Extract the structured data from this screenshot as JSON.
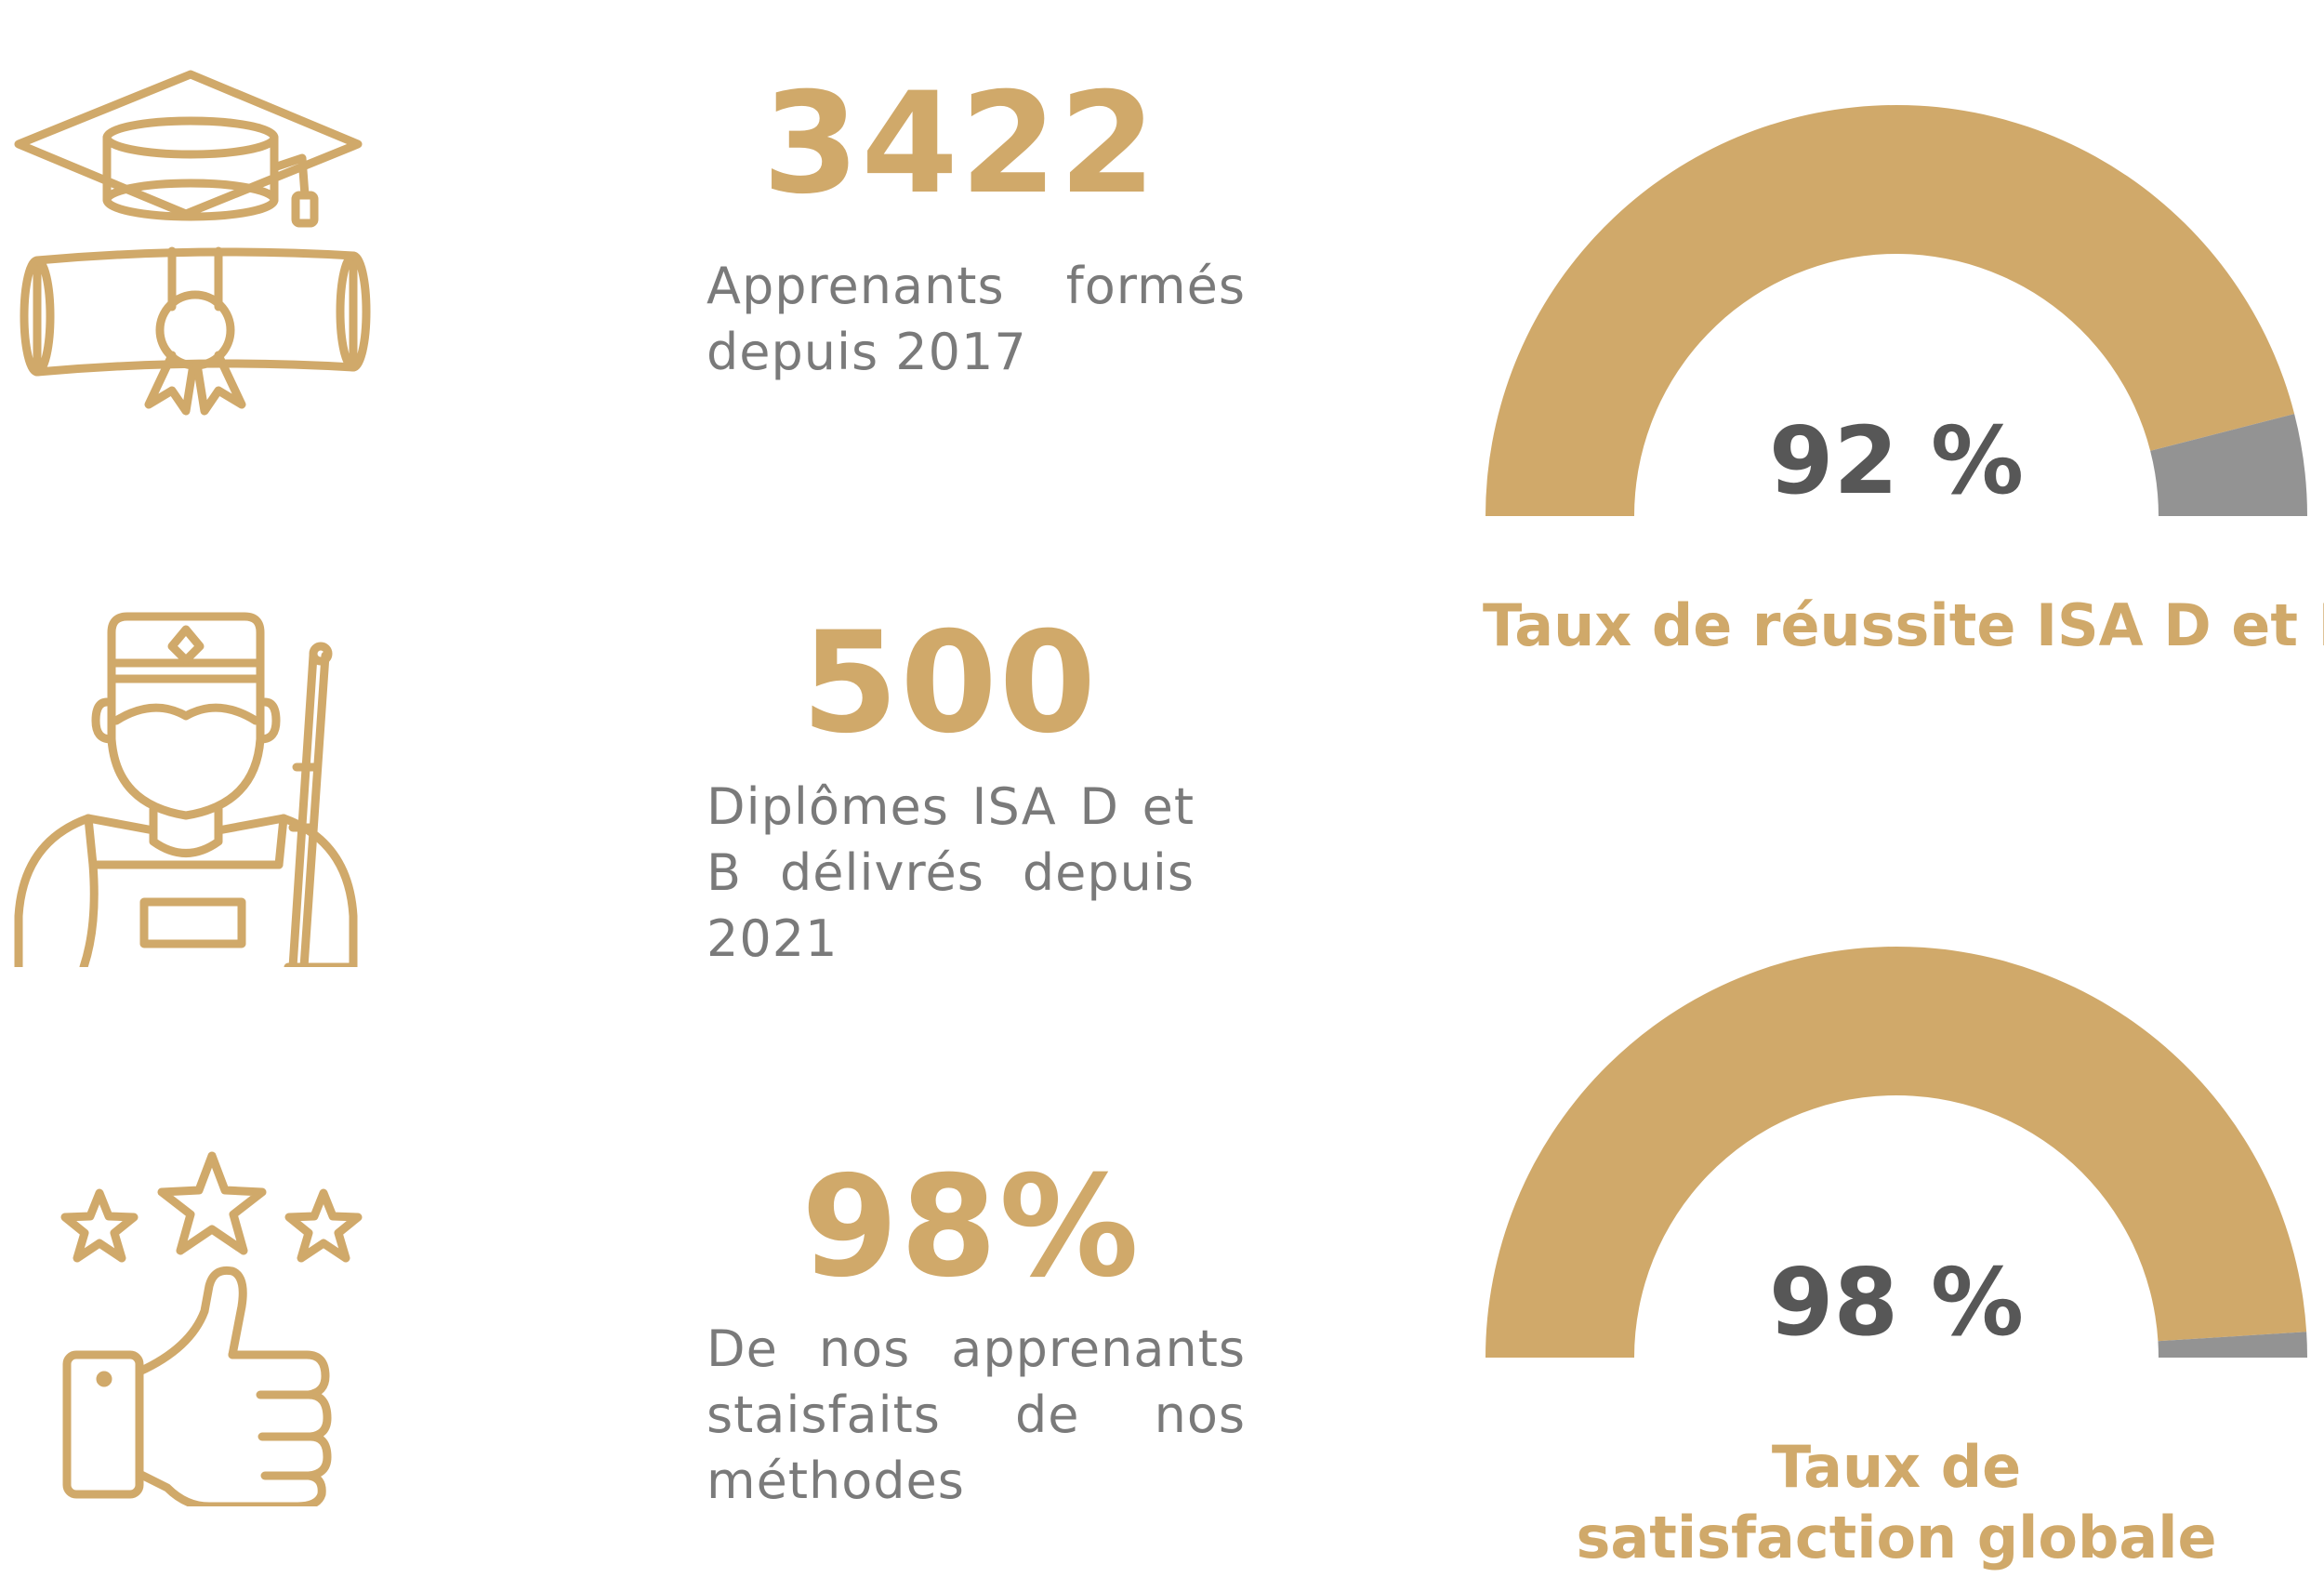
{
  "colors": {
    "accent": "#d0a96a",
    "remainder": "#939393",
    "value_text": "#575757",
    "body_text": "#7a7a7a"
  },
  "stats": [
    {
      "icon": "graduation-cap-diploma-icon",
      "number": "3422",
      "text": "Apprenants formés depuis 2017"
    },
    {
      "icon": "soldier-icon",
      "number": "500",
      "text": "Diplômes ISA D et B délivrés depuis 2021"
    },
    {
      "icon": "thumbs-up-stars-icon",
      "number": "98%",
      "text": "De nos apprenants staisfaits de nos méthodes"
    }
  ],
  "chart_data": [
    {
      "type": "pie",
      "style": "half-donut gauge",
      "value_label": "92 %",
      "title": "Taux de réussite ISA D et B",
      "slices": [
        {
          "label": "",
          "value": 92,
          "color": "#d0a96a"
        },
        {
          "label": "",
          "value": 8,
          "color": "#939393"
        }
      ]
    },
    {
      "type": "pie",
      "style": "half-donut gauge",
      "value_label": "98 %",
      "title": "Taux de satisfaction globale",
      "slices": [
        {
          "label": "",
          "value": 98,
          "color": "#d0a96a"
        },
        {
          "label": "",
          "value": 2,
          "color": "#939393"
        }
      ]
    }
  ]
}
